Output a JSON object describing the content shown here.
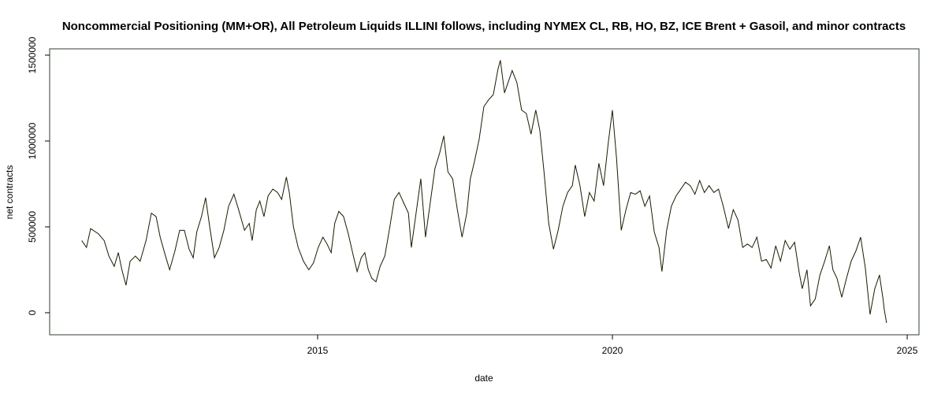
{
  "chart_data": {
    "type": "line",
    "title": "Noncommercial Positioning (MM+OR), All Petroleum Liquids ILLINI follows, including NYMEX CL, RB, HO, BZ, ICE Brent + Gasoil, and minor contracts",
    "x_label": "date",
    "y_label": "net contracts",
    "color": "#1a1a00",
    "xlim": [
      2010.455,
      2025.2
    ],
    "ylim": [
      -128440,
      1536700
    ],
    "xticks": [
      2015,
      2020,
      2025
    ],
    "yticks": [
      0,
      500000,
      1000000,
      1500000
    ],
    "x": [
      2011.0,
      2011.08,
      2011.15,
      2011.28,
      2011.38,
      2011.46,
      2011.55,
      2011.62,
      2011.68,
      2011.75,
      2011.82,
      2011.91,
      2011.99,
      2012.09,
      2012.18,
      2012.26,
      2012.33,
      2012.42,
      2012.49,
      2012.58,
      2012.66,
      2012.74,
      2012.82,
      2012.89,
      2012.95,
      2013.03,
      2013.1,
      2013.17,
      2013.25,
      2013.33,
      2013.41,
      2013.49,
      2013.58,
      2013.66,
      2013.76,
      2013.84,
      2013.89,
      2013.96,
      2014.02,
      2014.09,
      2014.16,
      2014.24,
      2014.32,
      2014.39,
      2014.47,
      2014.52,
      2014.59,
      2014.67,
      2014.76,
      2014.85,
      2014.93,
      2015.01,
      2015.09,
      2015.16,
      2015.23,
      2015.29,
      2015.36,
      2015.44,
      2015.52,
      2015.6,
      2015.67,
      2015.74,
      2015.8,
      2015.86,
      2015.92,
      2015.99,
      2016.06,
      2016.14,
      2016.22,
      2016.3,
      2016.38,
      2016.46,
      2016.54,
      2016.59,
      2016.67,
      2016.75,
      2016.83,
      2016.91,
      2016.99,
      2017.07,
      2017.14,
      2017.21,
      2017.29,
      2017.37,
      2017.45,
      2017.53,
      2017.59,
      2017.66,
      2017.74,
      2017.82,
      2017.9,
      2017.98,
      2018.06,
      2018.1,
      2018.17,
      2018.24,
      2018.3,
      2018.38,
      2018.46,
      2018.54,
      2018.62,
      2018.7,
      2018.77,
      2018.84,
      2018.92,
      2019.0,
      2019.08,
      2019.16,
      2019.24,
      2019.32,
      2019.37,
      2019.45,
      2019.53,
      2019.61,
      2019.69,
      2019.77,
      2019.85,
      2019.93,
      2020.0,
      2020.07,
      2020.15,
      2020.23,
      2020.31,
      2020.39,
      2020.47,
      2020.55,
      2020.63,
      2020.71,
      2020.79,
      2020.84,
      2020.92,
      2021.0,
      2021.08,
      2021.16,
      2021.24,
      2021.32,
      2021.4,
      2021.48,
      2021.56,
      2021.64,
      2021.72,
      2021.8,
      2021.88,
      2021.97,
      2022.05,
      2022.13,
      2022.21,
      2022.29,
      2022.37,
      2022.45,
      2022.53,
      2022.61,
      2022.69,
      2022.77,
      2022.85,
      2022.93,
      2023.01,
      2023.09,
      2023.17,
      2023.22,
      2023.3,
      2023.36,
      2023.44,
      2023.52,
      2023.6,
      2023.68,
      2023.74,
      2023.81,
      2023.89,
      2023.97,
      2024.05,
      2024.13,
      2024.21,
      2024.29,
      2024.37,
      2024.45,
      2024.53,
      2024.59,
      2024.61,
      2024.65
    ],
    "values": [
      420000,
      380000,
      490000,
      460000,
      420000,
      330000,
      270000,
      350000,
      250000,
      160000,
      300000,
      330000,
      300000,
      420000,
      580000,
      560000,
      440000,
      330000,
      250000,
      360000,
      480000,
      480000,
      370000,
      320000,
      470000,
      560000,
      670000,
      500000,
      320000,
      380000,
      480000,
      620000,
      690000,
      600000,
      480000,
      520000,
      420000,
      600000,
      650000,
      560000,
      680000,
      720000,
      700000,
      660000,
      790000,
      700000,
      500000,
      380000,
      300000,
      250000,
      290000,
      380000,
      440000,
      400000,
      350000,
      520000,
      590000,
      560000,
      460000,
      340000,
      240000,
      320000,
      350000,
      250000,
      200000,
      180000,
      270000,
      330000,
      490000,
      660000,
      700000,
      640000,
      580000,
      380000,
      580000,
      780000,
      440000,
      640000,
      840000,
      930000,
      1030000,
      820000,
      780000,
      600000,
      440000,
      580000,
      780000,
      880000,
      1010000,
      1200000,
      1240000,
      1270000,
      1420000,
      1470000,
      1280000,
      1350000,
      1410000,
      1340000,
      1180000,
      1160000,
      1040000,
      1180000,
      1060000,
      820000,
      520000,
      370000,
      480000,
      620000,
      700000,
      740000,
      860000,
      740000,
      560000,
      700000,
      650000,
      870000,
      740000,
      990000,
      1180000,
      900000,
      480000,
      600000,
      700000,
      690000,
      710000,
      620000,
      680000,
      470000,
      380000,
      240000,
      480000,
      620000,
      680000,
      720000,
      760000,
      740000,
      690000,
      770000,
      700000,
      740000,
      700000,
      720000,
      620000,
      490000,
      600000,
      540000,
      380000,
      400000,
      380000,
      440000,
      300000,
      310000,
      260000,
      390000,
      300000,
      420000,
      370000,
      410000,
      230000,
      140000,
      250000,
      40000,
      80000,
      220000,
      300000,
      390000,
      250000,
      200000,
      90000,
      200000,
      300000,
      360000,
      440000,
      260000,
      -10000,
      140000,
      220000,
      80000,
      20000,
      -60000
    ]
  }
}
